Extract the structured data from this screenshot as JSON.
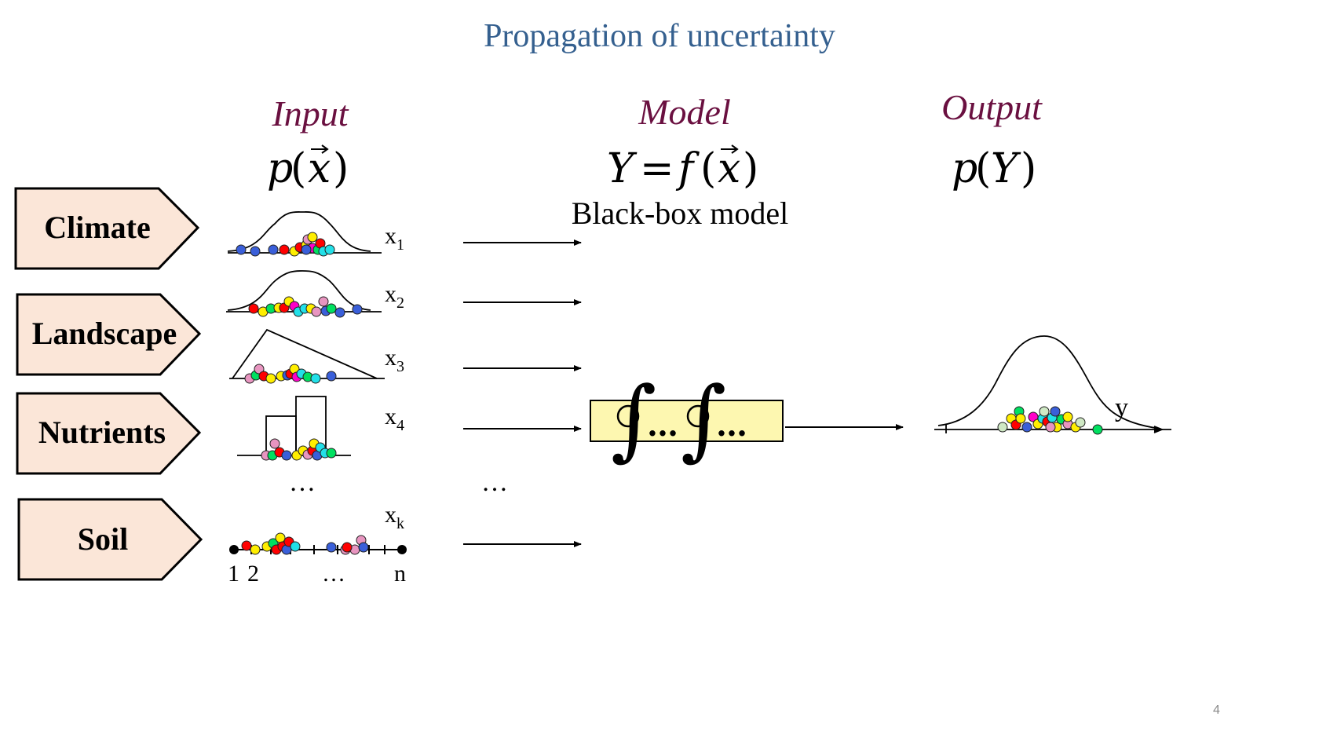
{
  "slide": {
    "title": "Propagation  of uncertainty",
    "page_number": "4"
  },
  "headers": {
    "input": "Input",
    "model": "Model",
    "output": "Output",
    "input_formula": "p(x⃗)",
    "input_formula_p": "p",
    "input_formula_x": "x",
    "model_formula_y": "Y",
    "model_formula_eq": "=",
    "model_formula_f": "f",
    "model_formula_x": "x",
    "output_formula_p": "p",
    "output_formula_y": "Y",
    "model_subtitle": "Black-box model"
  },
  "categories": [
    {
      "label": "Climate"
    },
    {
      "label": "Landscape"
    },
    {
      "label": "Nutrients"
    },
    {
      "label": "Soil"
    }
  ],
  "variables": [
    {
      "base": "x",
      "sub": "1"
    },
    {
      "base": "x",
      "sub": "2"
    },
    {
      "base": "x",
      "sub": "3"
    },
    {
      "base": "x",
      "sub": "4"
    },
    {
      "base": "x",
      "sub": "k"
    }
  ],
  "ellipsis": "…",
  "soil_axis": {
    "start_1": "1",
    "start_2": "2",
    "dots": "…",
    "end": "n"
  },
  "model_box": {
    "dots_1": "…",
    "dots_2": "…"
  },
  "output_axis_label": "y",
  "colors": {
    "title": "#35608f",
    "header": "#6a1040",
    "box_fill": "#fbe6d8",
    "model_fill": "#fdf7b0"
  }
}
